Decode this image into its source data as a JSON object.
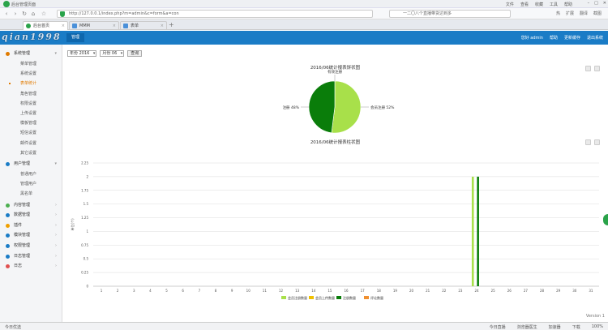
{
  "browser": {
    "window_title": "后台管理页面",
    "right_menu": [
      "文件",
      "查看",
      "收藏",
      "工具",
      "帮助"
    ],
    "url": "http://127.0.0.1/index.php?m=admin&c=form&a=con",
    "search_text": "一二〇八个直播带货达到多",
    "ext_items": [
      "热",
      "扩展",
      "翻译",
      "截图"
    ],
    "tabs": [
      {
        "label": "后台首页"
      },
      {
        "label": "MMM"
      },
      {
        "label": "表单"
      }
    ],
    "status_left": "今日优选",
    "status_right": [
      "今日直播",
      "浏览器医生",
      "加速器",
      "下载",
      "100%"
    ]
  },
  "header": {
    "brand": "qian1998",
    "mgmt_label": "管理",
    "user_links": [
      "您好 admin",
      "帮助",
      "更新缓存",
      "退出系统"
    ]
  },
  "sidebar": {
    "section1": {
      "label": "系统管理"
    },
    "sub1": [
      "菜单管理",
      "系统设置",
      "表单统计",
      "角色管理",
      "权限设置",
      "上传设置",
      "模板管理",
      "短信设置",
      "邮件设置",
      "其它设置"
    ],
    "active_index": 2,
    "section2": {
      "label": "用户管理"
    },
    "sub2": [
      "普通用户",
      "管理用户",
      "黑名单"
    ],
    "sections": [
      {
        "label": "内容管理",
        "color": "#4caf50"
      },
      {
        "label": "数据管理",
        "color": "#1a7cc6"
      },
      {
        "label": "插件",
        "color": "#f0a000"
      },
      {
        "label": "模块管理",
        "color": "#1a7cc6"
      },
      {
        "label": "权限管理",
        "color": "#1a7cc6"
      },
      {
        "label": "日志管理",
        "color": "#1a7cc6"
      },
      {
        "label": "日志",
        "color": "#e05050"
      }
    ]
  },
  "filters": {
    "year": "年份 2016",
    "month": "月份 06",
    "query": "查询"
  },
  "pie": {
    "title": "2016/06统计报表饼状图",
    "top_label": "有效注册",
    "left_label": "注册 48%",
    "right_label": "会员注册 52%",
    "values": [
      52,
      48
    ],
    "colors": [
      "#a8e04a",
      "#0a7d0a"
    ]
  },
  "chart_data": {
    "type": "bar",
    "title": "2016/06统计报表柱状图",
    "ylabel": "单位(个)",
    "ylim": [
      0,
      2.25
    ],
    "yticks": [
      "0",
      "0.25",
      "0.5",
      "0.75",
      "1",
      "1.25",
      "1.5",
      "1.75",
      "2",
      "2.25"
    ],
    "categories": [
      "1",
      "2",
      "3",
      "4",
      "5",
      "6",
      "7",
      "8",
      "9",
      "10",
      "11",
      "12",
      "13",
      "14",
      "15",
      "16",
      "17",
      "18",
      "19",
      "20",
      "21",
      "22",
      "23",
      "24",
      "25",
      "26",
      "27",
      "28",
      "29",
      "30",
      "31"
    ],
    "series": [
      {
        "name": "会员注册数量",
        "color": "#a8e04a",
        "values": [
          0,
          0,
          0,
          0,
          0,
          0,
          0,
          0,
          0,
          0,
          0,
          0,
          0,
          0,
          0,
          0,
          0,
          0,
          0,
          0,
          0,
          0,
          0,
          2,
          0,
          0,
          0,
          0,
          0,
          0,
          0
        ]
      },
      {
        "name": "会员上传数量",
        "color": "#f0c000",
        "values": [
          0,
          0,
          0,
          0,
          0,
          0,
          0,
          0,
          0,
          0,
          0,
          0,
          0,
          0,
          0,
          0,
          0,
          0,
          0,
          0,
          0,
          0,
          0,
          0,
          0,
          0,
          0,
          0,
          0,
          0,
          0
        ]
      },
      {
        "name": "注册数量",
        "color": "#0a7d0a",
        "values": [
          0,
          0,
          0,
          0,
          0,
          0,
          0,
          0,
          0,
          0,
          0,
          0,
          0,
          0,
          0,
          0,
          0,
          0,
          0,
          0,
          0,
          0,
          0,
          2,
          0,
          0,
          0,
          0,
          0,
          0,
          0
        ]
      },
      {
        "name": "评论数量",
        "color": "#f09030",
        "values": [
          0,
          0,
          0,
          0,
          0,
          0,
          0,
          0,
          0,
          0,
          0,
          0,
          0,
          0,
          0,
          0,
          0,
          0,
          0,
          0,
          0,
          0,
          0,
          0,
          0,
          0,
          0,
          0,
          0,
          0,
          0
        ]
      }
    ]
  },
  "footer": {
    "version": "Version 1"
  }
}
